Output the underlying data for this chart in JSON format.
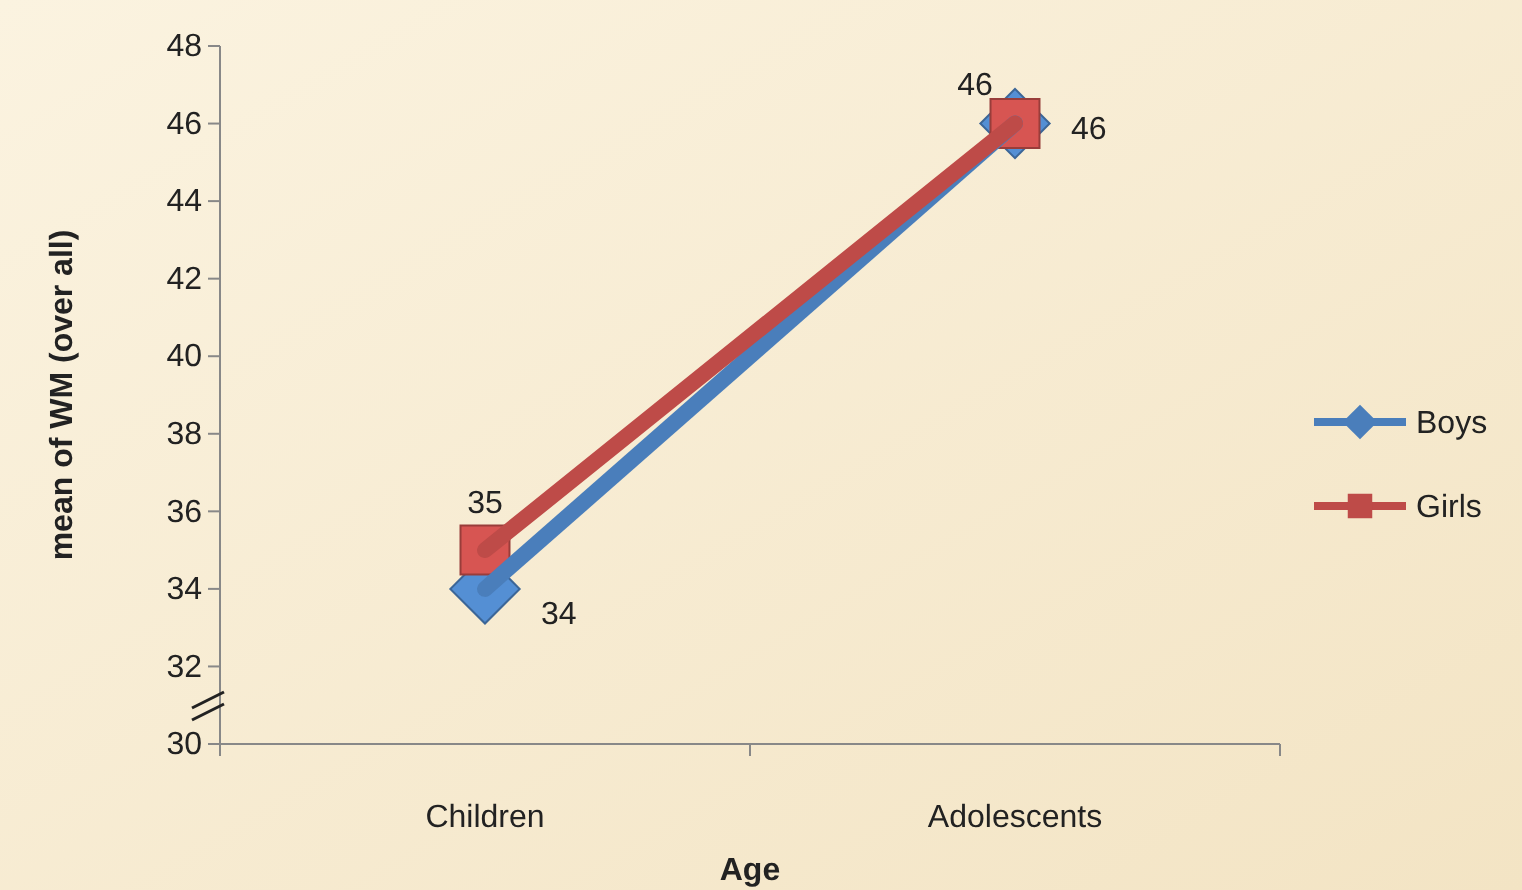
{
  "chart_data": {
    "type": "line",
    "xlabel": "Age",
    "ylabel": "mean of WM (over all)",
    "categories": [
      "Children",
      "Adolescents"
    ],
    "series": [
      {
        "name": "Boys",
        "color": "#4a7ebb",
        "values": [
          34,
          46
        ],
        "marker": "diamond"
      },
      {
        "name": "Girls",
        "color": "#be4b48",
        "values": [
          35,
          46
        ],
        "marker": "square"
      }
    ],
    "ylim": [
      30,
      48
    ],
    "yticks": [
      30,
      32,
      34,
      36,
      38,
      40,
      42,
      44,
      46,
      48
    ],
    "grid": false,
    "legend": "right",
    "data_labels": true,
    "line_style": "solid"
  }
}
